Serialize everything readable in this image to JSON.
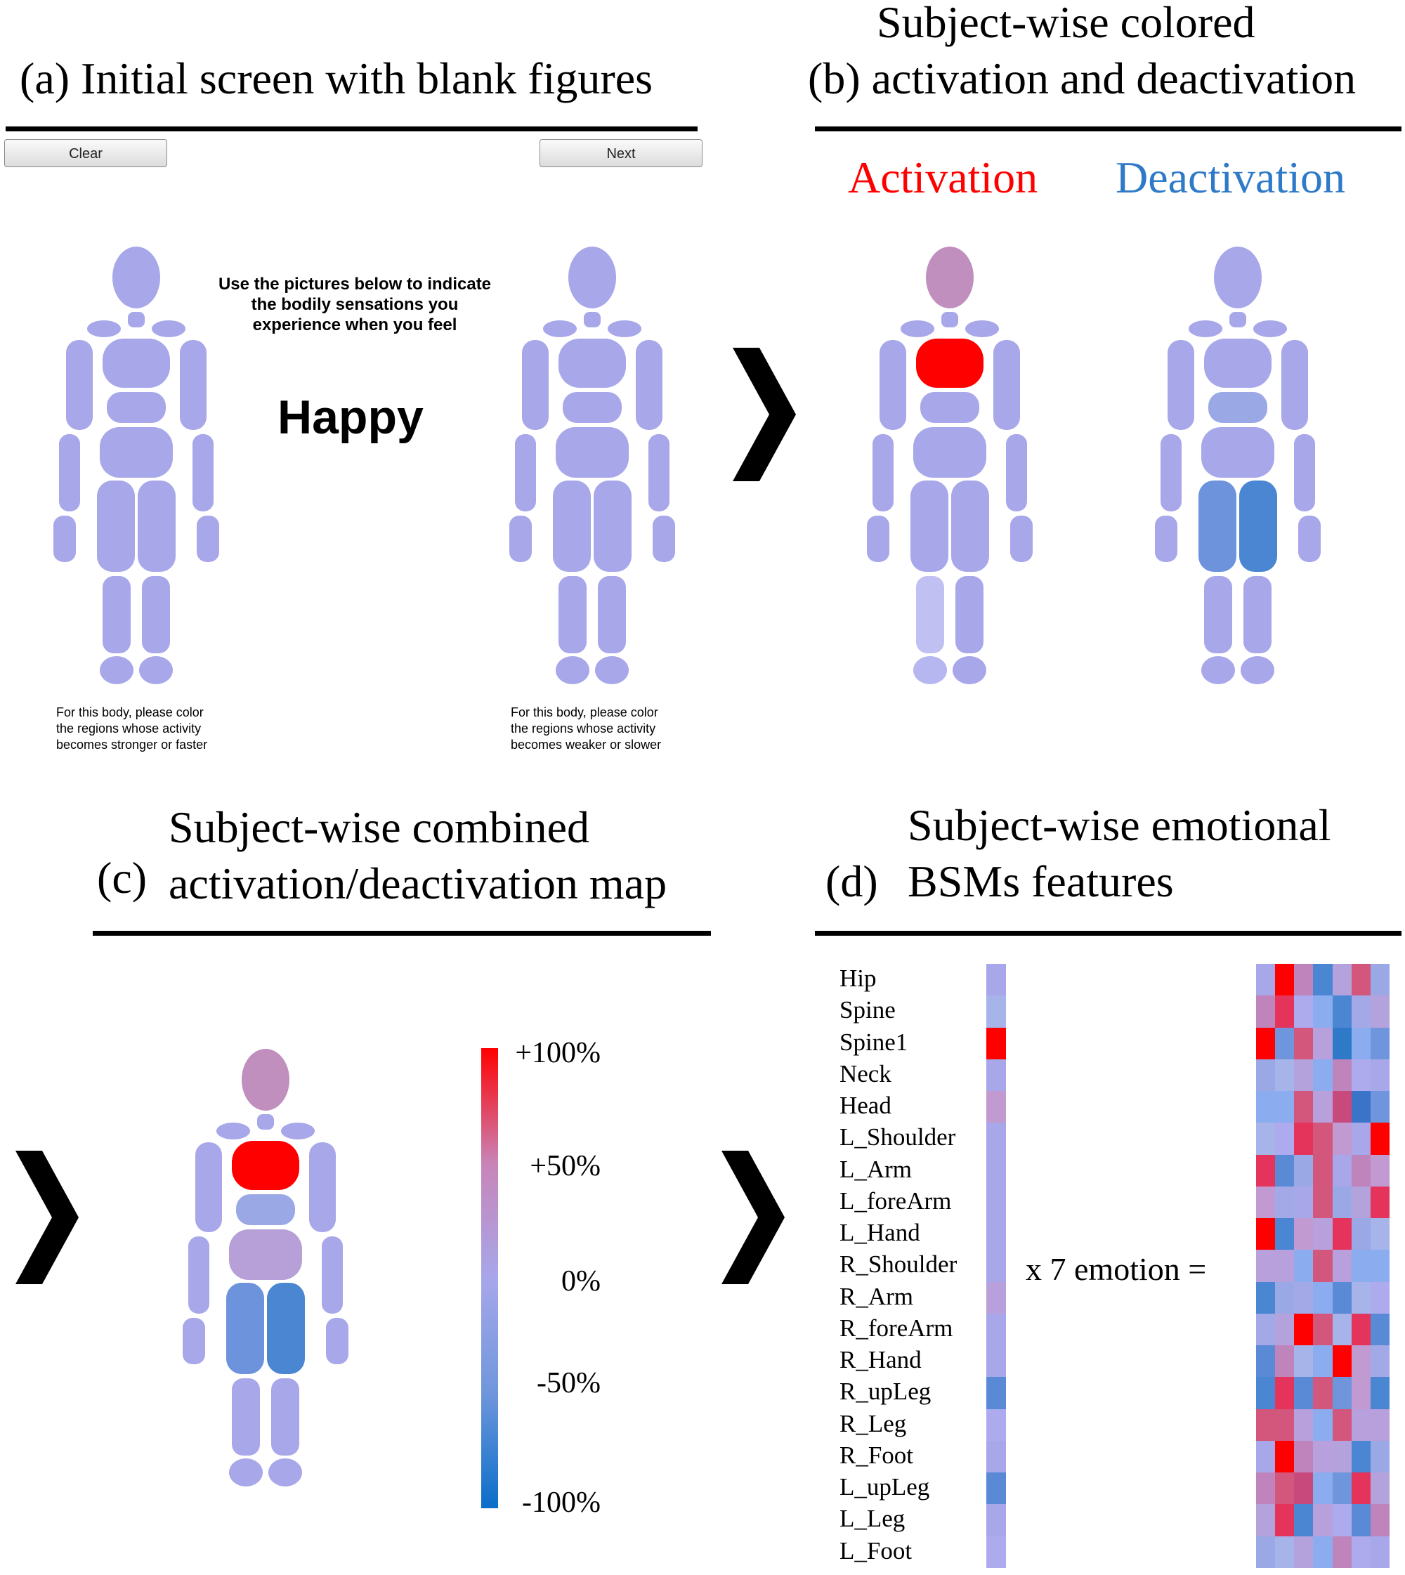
{
  "panel_a": {
    "title": "(a) Initial screen with blank figures",
    "clear_label": "Clear",
    "next_label": "Next",
    "instruction": "Use the pictures below to indicate the bodily sensations you experience when you feel",
    "emotion": "Happy",
    "left_note": [
      "For this body, please color",
      "the regions whose activity",
      "becomes stronger or faster"
    ],
    "right_note": [
      "For this body, please color",
      "the regions whose activity",
      "becomes weaker or slower"
    ]
  },
  "panel_b": {
    "title_line1": "Subject-wise colored",
    "title_line2": "(b) activation and deactivation",
    "activation_label": "Activation",
    "deactivation_label": "Deactivation"
  },
  "panel_c": {
    "letter": "(c)",
    "title_line1": "Subject-wise combined",
    "title_line2": "activation/deactivation map",
    "colorbar_ticks": [
      "+100%",
      "+50%",
      "0%",
      "-50%",
      "-100%"
    ]
  },
  "panel_d": {
    "letter": "(d)",
    "title_line1": "Subject-wise emotional",
    "title_line2": "BSMs features",
    "equation": "x 7 emotion =",
    "regions": [
      "Hip",
      "Spine",
      "Spine1",
      "Neck",
      "Head",
      "L_Shoulder",
      "L_Arm",
      "L_foreArm",
      "L_Hand",
      "R_Shoulder",
      "R_Arm",
      "R_foreArm",
      "R_Hand",
      "R_upLeg",
      "R_Leg",
      "R_Foot",
      "L_upLeg",
      "L_Leg",
      "L_Foot"
    ]
  },
  "colors": {
    "neutral": "#a7a7ea",
    "activation": "#ff0000",
    "head_tint": "#c08fbe",
    "deactivation": "#4a86d2",
    "deactivation_leg": "#6c93dc"
  }
}
